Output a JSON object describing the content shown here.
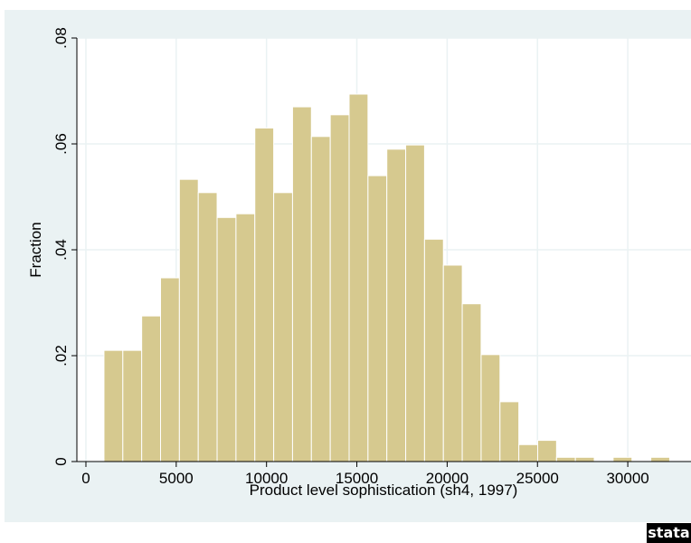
{
  "chart_data": {
    "type": "bar",
    "subtype": "histogram",
    "xlabel": "Product level sophistication (sh4, 1997)",
    "ylabel": "Fraction",
    "xlim": [
      -500,
      33500
    ],
    "ylim": [
      0,
      0.08
    ],
    "x_ticks": [
      0,
      5000,
      10000,
      15000,
      20000,
      25000,
      30000
    ],
    "x_tick_labels": [
      "0",
      "5000",
      "10000",
      "15000",
      "20000",
      "25000",
      "30000"
    ],
    "y_ticks": [
      0,
      0.02,
      0.04,
      0.06,
      0.08
    ],
    "y_tick_labels": [
      "0",
      ".02",
      ".04",
      ".06",
      ".08"
    ],
    "y_tick_rotation": "vertical",
    "grid": "horizontal and vertical at ticks",
    "bin_start": 1000,
    "bin_width": 1044,
    "values": [
      0.021,
      0.021,
      0.0275,
      0.0347,
      0.0533,
      0.0508,
      0.0461,
      0.0468,
      0.063,
      0.0508,
      0.067,
      0.0614,
      0.0655,
      0.0694,
      0.054,
      0.059,
      0.0598,
      0.042,
      0.0371,
      0.0298,
      0.0202,
      0.0113,
      0.0032,
      0.004,
      0.0008,
      0.0008,
      0,
      0.0008,
      0,
      0.0008
    ],
    "bar_color": "#d6c98f",
    "bar_edge_color": "#ffffff",
    "background_color": "#eaf2f3",
    "plot_background_color": "#ffffff",
    "grid_color": "#eaf2f3"
  },
  "logo": {
    "text": "stata"
  }
}
